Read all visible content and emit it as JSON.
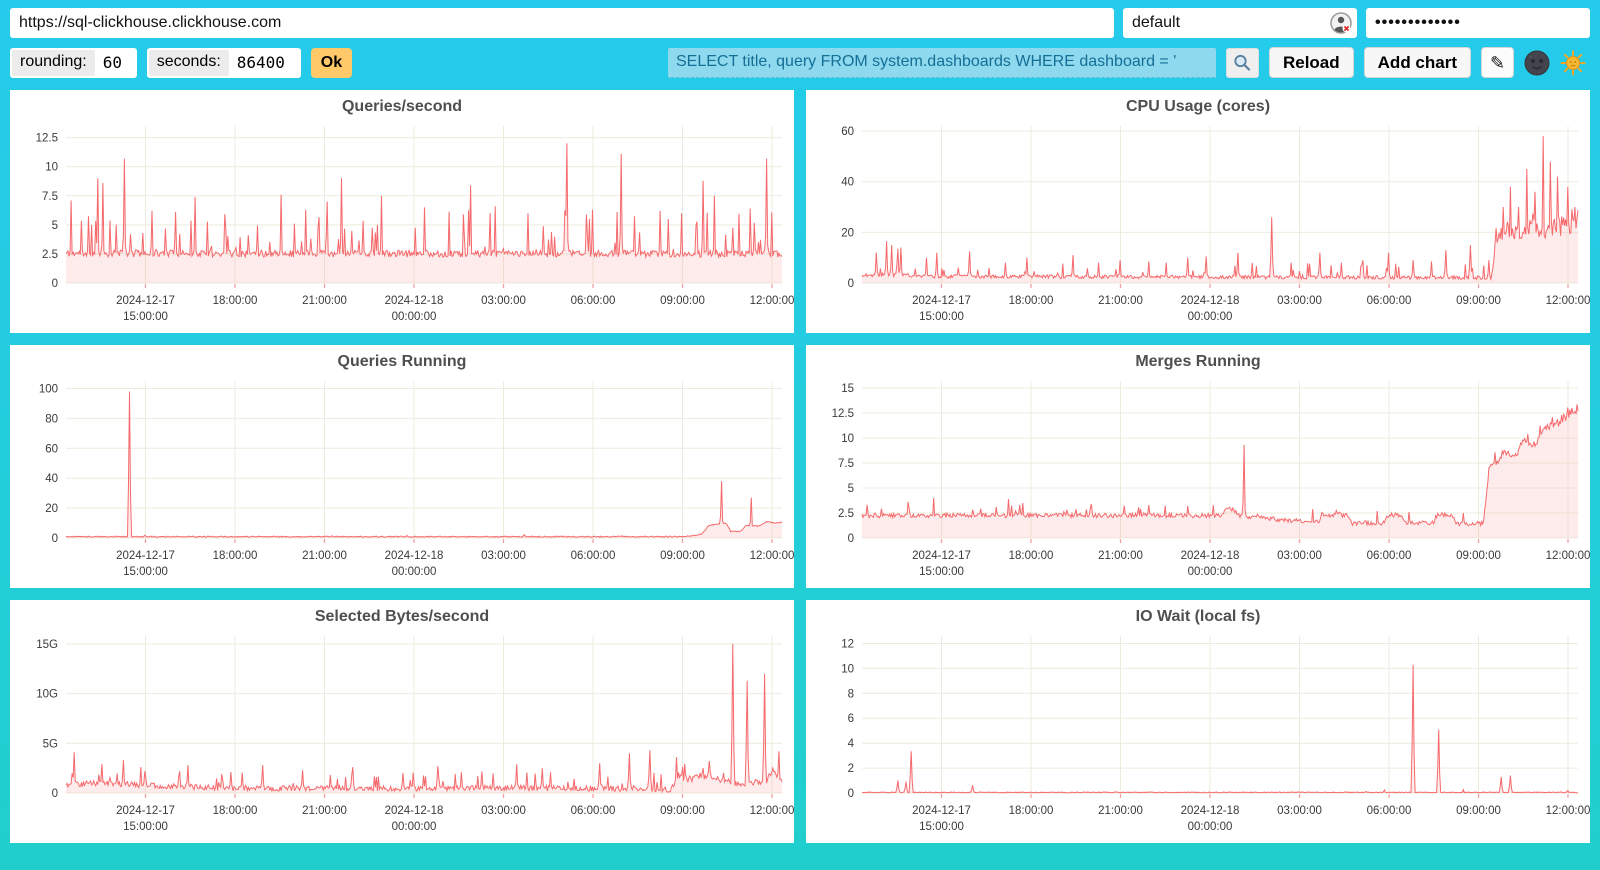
{
  "topbar": {
    "url": "https://sql-clickhouse.clickhouse.com",
    "user": "default",
    "password_masked": "•••••••••••••"
  },
  "toolbar": {
    "rounding_label": "rounding:",
    "rounding_value": "60",
    "seconds_label": "seconds:",
    "seconds_value": "86400",
    "ok_label": "Ok",
    "query_value": "SELECT title, query FROM system.dashboards WHERE dashboard = '",
    "reload_label": "Reload",
    "add_chart_label": "Add chart",
    "pencil_glyph": "✎"
  },
  "colors": {
    "background_top": "#25CBEC",
    "background_bottom": "#20CFCC",
    "line": "#F5696C",
    "fill": "rgba(245,105,108,0.13)",
    "grid": "#ECECDE",
    "axis_text": "#3A3A3A",
    "tick_mark": "#F2A0A3",
    "title": "#4F4F4F",
    "query_bg": "#8FD9EF",
    "query_text": "#146F96",
    "ok_bg": "#FFC96A"
  },
  "chart_data": {
    "type": "area",
    "note": "six time-series area charts over 24h window 2024-12-17 ~12:20 to 2024-12-18 ~12:20; series = baseline anchor points [t 0..1, value] + noise + explicit spikes [t, value]",
    "xticks": [
      {
        "f": 0.111,
        "l1": "2024-12-17",
        "l2": "15:00:00"
      },
      {
        "f": 0.236,
        "l1": "18:00:00"
      },
      {
        "f": 0.361,
        "l1": "21:00:00"
      },
      {
        "f": 0.486,
        "l1": "2024-12-18",
        "l2": "00:00:00"
      },
      {
        "f": 0.611,
        "l1": "03:00:00"
      },
      {
        "f": 0.736,
        "l1": "06:00:00"
      },
      {
        "f": 0.861,
        "l1": "09:00:00"
      },
      {
        "f": 0.986,
        "l1": "12:00:00"
      }
    ],
    "charts": [
      {
        "title": "Queries/second",
        "ymax": 13.5,
        "yticks": [
          {
            "v": 0,
            "label": "0"
          },
          {
            "v": 2.5,
            "label": "2.5"
          },
          {
            "v": 5,
            "label": "5"
          },
          {
            "v": 7.5,
            "label": "7.5"
          },
          {
            "v": 10,
            "label": "10"
          },
          {
            "v": 12.5,
            "label": "12.5"
          }
        ],
        "seed": 11,
        "noise": 0.3,
        "rel": 0,
        "spike_prob": 0.1,
        "spike_max": 3.8,
        "min": 1.8,
        "base": [
          [
            0,
            2.55
          ],
          [
            1,
            2.5
          ]
        ],
        "spikes": [
          [
            0.007,
            7.1
          ],
          [
            0.045,
            9.0
          ],
          [
            0.052,
            8.6
          ],
          [
            0.081,
            10.7
          ],
          [
            0.12,
            6.2
          ],
          [
            0.18,
            7.4
          ],
          [
            0.3,
            7.6
          ],
          [
            0.335,
            6.3
          ],
          [
            0.365,
            7.0
          ],
          [
            0.385,
            9.0
          ],
          [
            0.44,
            7.5
          ],
          [
            0.5,
            6.5
          ],
          [
            0.565,
            8.4
          ],
          [
            0.6,
            6.6
          ],
          [
            0.645,
            6.0
          ],
          [
            0.7,
            12.0
          ],
          [
            0.735,
            6.3
          ],
          [
            0.776,
            11.1
          ],
          [
            0.83,
            6.2
          ],
          [
            0.86,
            6.0
          ],
          [
            0.89,
            8.8
          ],
          [
            0.905,
            7.5
          ],
          [
            0.955,
            6.4
          ],
          [
            0.979,
            10.7
          ]
        ]
      },
      {
        "title": "CPU Usage (cores)",
        "ymax": 62,
        "yticks": [
          {
            "v": 0,
            "label": "0"
          },
          {
            "v": 20,
            "label": "20"
          },
          {
            "v": 40,
            "label": "40"
          },
          {
            "v": 60,
            "label": "60"
          }
        ],
        "seed": 22,
        "noise": 0.7,
        "rel": 0.16,
        "spike_prob": 0.06,
        "spike_max": 6,
        "min": 0.8,
        "base": [
          [
            0,
            3.0
          ],
          [
            0.05,
            3.2
          ],
          [
            0.1,
            2.6
          ],
          [
            0.87,
            2.1
          ],
          [
            0.879,
            2.1
          ],
          [
            0.886,
            18
          ],
          [
            0.9,
            21
          ],
          [
            0.92,
            19
          ],
          [
            0.935,
            22
          ],
          [
            0.95,
            19
          ],
          [
            0.965,
            22
          ],
          [
            0.98,
            21
          ],
          [
            1,
            25
          ]
        ],
        "spikes": [
          [
            0.02,
            12
          ],
          [
            0.035,
            16.5
          ],
          [
            0.042,
            15
          ],
          [
            0.05,
            13.5
          ],
          [
            0.055,
            14
          ],
          [
            0.09,
            10
          ],
          [
            0.105,
            12
          ],
          [
            0.15,
            12.5
          ],
          [
            0.2,
            8
          ],
          [
            0.23,
            10
          ],
          [
            0.295,
            11
          ],
          [
            0.33,
            8
          ],
          [
            0.36,
            9
          ],
          [
            0.4,
            8.5
          ],
          [
            0.425,
            8
          ],
          [
            0.455,
            10
          ],
          [
            0.48,
            10.5
          ],
          [
            0.525,
            12
          ],
          [
            0.572,
            26
          ],
          [
            0.6,
            8
          ],
          [
            0.64,
            12
          ],
          [
            0.67,
            8
          ],
          [
            0.7,
            9
          ],
          [
            0.735,
            12
          ],
          [
            0.77,
            9
          ],
          [
            0.795,
            8.5
          ],
          [
            0.815,
            13
          ],
          [
            0.85,
            15
          ],
          [
            0.875,
            9
          ],
          [
            0.895,
            30
          ],
          [
            0.906,
            38
          ],
          [
            0.917,
            30
          ],
          [
            0.928,
            45
          ],
          [
            0.94,
            36
          ],
          [
            0.952,
            58
          ],
          [
            0.962,
            48
          ],
          [
            0.972,
            42
          ],
          [
            0.985,
            38
          ],
          [
            0.995,
            30
          ]
        ]
      },
      {
        "title": "Queries Running",
        "ymax": 105,
        "yticks": [
          {
            "v": 0,
            "label": "0"
          },
          {
            "v": 20,
            "label": "20"
          },
          {
            "v": 40,
            "label": "40"
          },
          {
            "v": 60,
            "label": "60"
          },
          {
            "v": 80,
            "label": "80"
          },
          {
            "v": 100,
            "label": "100"
          }
        ],
        "seed": 33,
        "noise": 0.35,
        "rel": 0,
        "spike_prob": 0.012,
        "spike_max": 1.6,
        "min": 0.15,
        "base": [
          [
            0,
            0.9
          ],
          [
            0.86,
            0.9
          ],
          [
            0.873,
            1.5
          ],
          [
            0.888,
            2.5
          ],
          [
            0.898,
            8.5
          ],
          [
            0.912,
            9.5
          ],
          [
            0.922,
            10
          ],
          [
            0.928,
            4.5
          ],
          [
            0.943,
            4.5
          ],
          [
            0.95,
            8.5
          ],
          [
            0.968,
            8
          ],
          [
            0.978,
            11
          ],
          [
            0.988,
            10
          ],
          [
            1,
            10.5
          ]
        ],
        "spikes": [
          [
            0.088,
            98
          ],
          [
            0.916,
            38
          ],
          [
            0.957,
            27
          ]
        ]
      },
      {
        "title": "Merges Running",
        "ymax": 15.7,
        "yticks": [
          {
            "v": 0,
            "label": "0"
          },
          {
            "v": 2.5,
            "label": "2.5"
          },
          {
            "v": 5,
            "label": "5"
          },
          {
            "v": 7.5,
            "label": "7.5"
          },
          {
            "v": 10,
            "label": "10"
          },
          {
            "v": 12.5,
            "label": "12.5"
          },
          {
            "v": 15,
            "label": "15"
          }
        ],
        "seed": 44,
        "noise": 0.22,
        "rel": 0.04,
        "spike_prob": 0.05,
        "spike_max": 1.1,
        "min": 1.1,
        "base": [
          [
            0,
            2.25
          ],
          [
            0.5,
            2.25
          ],
          [
            0.512,
            3.2
          ],
          [
            0.528,
            2.2
          ],
          [
            0.56,
            2.0
          ],
          [
            0.6,
            1.7
          ],
          [
            0.638,
            1.7
          ],
          [
            0.644,
            2.3
          ],
          [
            0.678,
            2.3
          ],
          [
            0.684,
            1.5
          ],
          [
            0.728,
            1.5
          ],
          [
            0.734,
            2.3
          ],
          [
            0.754,
            2.3
          ],
          [
            0.76,
            1.5
          ],
          [
            0.798,
            1.5
          ],
          [
            0.804,
            2.3
          ],
          [
            0.824,
            2.3
          ],
          [
            0.83,
            1.45
          ],
          [
            0.868,
            1.45
          ],
          [
            0.876,
            7.2
          ],
          [
            0.888,
            7.6
          ],
          [
            0.896,
            8.6
          ],
          [
            0.912,
            8.2
          ],
          [
            0.924,
            9.7
          ],
          [
            0.94,
            9.4
          ],
          [
            0.954,
            10.9
          ],
          [
            0.97,
            11.3
          ],
          [
            0.984,
            12.3
          ],
          [
            1,
            12.9
          ]
        ],
        "spikes": [
          [
            0.065,
            3.6
          ],
          [
            0.1,
            4.0
          ],
          [
            0.205,
            3.9
          ],
          [
            0.225,
            3.5
          ],
          [
            0.32,
            3.4
          ],
          [
            0.4,
            3.3
          ],
          [
            0.455,
            3.2
          ],
          [
            0.534,
            9.3
          ],
          [
            0.63,
            2.9
          ],
          [
            0.72,
            2.7
          ],
          [
            0.764,
            2.6
          ],
          [
            0.84,
            2.5
          ],
          [
            0.93,
            10.4
          ],
          [
            0.962,
            11.5
          ]
        ]
      },
      {
        "title": "Selected Bytes/second",
        "ymax": 15.8,
        "yticks": [
          {
            "v": 0,
            "label": "0"
          },
          {
            "v": 5,
            "label": "5G"
          },
          {
            "v": 10,
            "label": "10G"
          },
          {
            "v": 15,
            "label": "15G"
          }
        ],
        "seed": 55,
        "noise": 0.28,
        "rel": 0.25,
        "spike_prob": 0.08,
        "spike_max": 1.7,
        "min": 0.04,
        "base": [
          [
            0,
            0.85
          ],
          [
            0.05,
            1.0
          ],
          [
            0.12,
            0.75
          ],
          [
            0.22,
            0.5
          ],
          [
            0.45,
            0.45
          ],
          [
            0.65,
            0.5
          ],
          [
            0.8,
            0.4
          ],
          [
            0.845,
            0.35
          ],
          [
            0.856,
            1.9
          ],
          [
            0.868,
            1.3
          ],
          [
            0.885,
            1.7
          ],
          [
            0.905,
            1.7
          ],
          [
            0.92,
            1.1
          ],
          [
            0.945,
            0.9
          ],
          [
            0.962,
            1.1
          ],
          [
            0.975,
            0.9
          ],
          [
            0.988,
            2.3
          ],
          [
            1,
            0.9
          ]
        ],
        "spikes": [
          [
            0.012,
            4.1
          ],
          [
            0.05,
            2.9
          ],
          [
            0.08,
            3.3
          ],
          [
            0.105,
            2.6
          ],
          [
            0.17,
            2.8
          ],
          [
            0.23,
            2.1
          ],
          [
            0.275,
            2.8
          ],
          [
            0.33,
            2.3
          ],
          [
            0.4,
            2.6
          ],
          [
            0.47,
            2.0
          ],
          [
            0.52,
            2.7
          ],
          [
            0.63,
            2.9
          ],
          [
            0.665,
            2.5
          ],
          [
            0.745,
            3.0
          ],
          [
            0.787,
            4.0
          ],
          [
            0.815,
            4.3
          ],
          [
            0.852,
            3.6
          ],
          [
            0.932,
            15.0
          ],
          [
            0.952,
            11.3
          ],
          [
            0.976,
            12.0
          ],
          [
            0.995,
            4.2
          ]
        ]
      },
      {
        "title": "IO Wait (local fs)",
        "ymax": 12.6,
        "yticks": [
          {
            "v": 0,
            "label": "0"
          },
          {
            "v": 2,
            "label": "2"
          },
          {
            "v": 4,
            "label": "4"
          },
          {
            "v": 6,
            "label": "6"
          },
          {
            "v": 8,
            "label": "8"
          },
          {
            "v": 10,
            "label": "10"
          },
          {
            "v": 12,
            "label": "12"
          }
        ],
        "seed": 66,
        "noise": 0.035,
        "rel": 0,
        "spike_prob": 0.004,
        "spike_max": 0.25,
        "min": 0.01,
        "base": [
          [
            0,
            0.05
          ],
          [
            1,
            0.05
          ]
        ],
        "spikes": [
          [
            0.05,
            1.0
          ],
          [
            0.062,
            0.9
          ],
          [
            0.068,
            3.35
          ],
          [
            0.155,
            0.62
          ],
          [
            0.3,
            0.1
          ],
          [
            0.45,
            0.07
          ],
          [
            0.6,
            0.09
          ],
          [
            0.73,
            0.25
          ],
          [
            0.77,
            10.3
          ],
          [
            0.805,
            5.1
          ],
          [
            0.893,
            1.3
          ],
          [
            0.906,
            1.4
          ],
          [
            0.985,
            0.2
          ]
        ]
      }
    ]
  }
}
